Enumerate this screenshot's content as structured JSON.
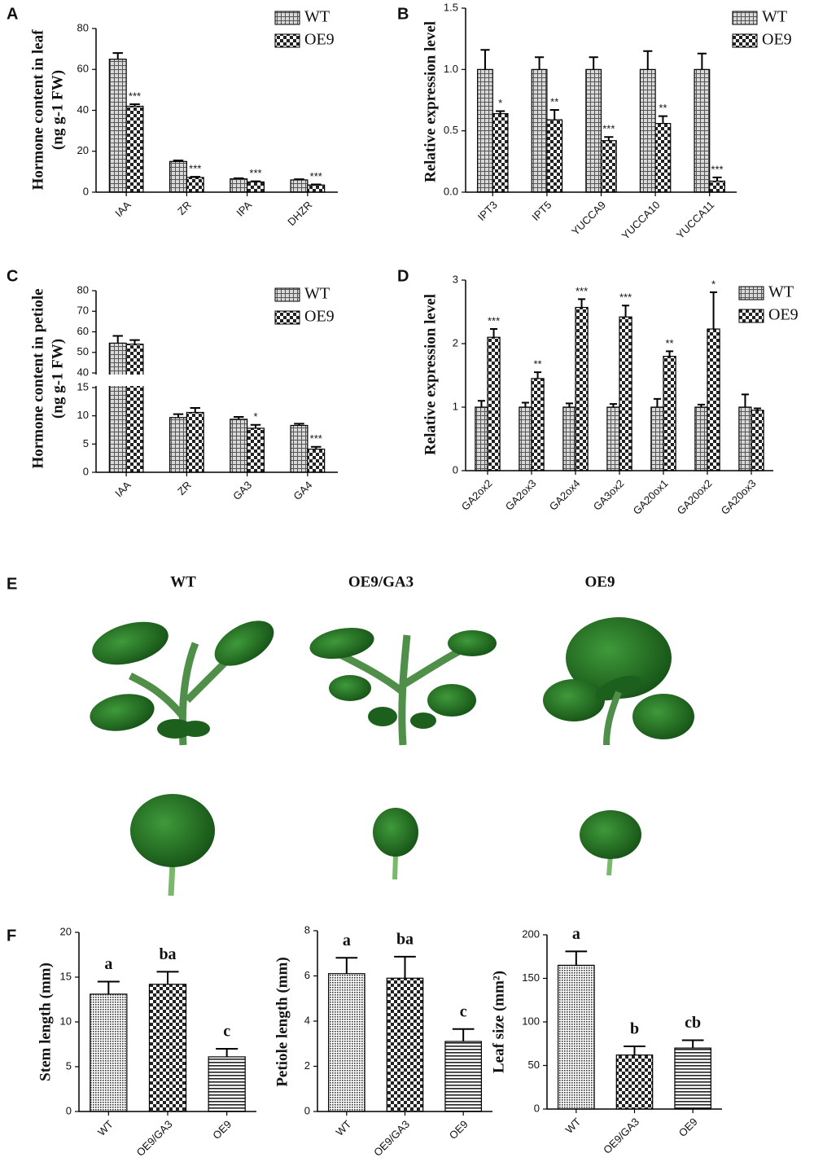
{
  "chart_data": [
    {
      "type": "bar",
      "label": "A",
      "ylabel": [
        "Hormone content in leaf",
        "(ng g-1 FW)"
      ],
      "categories": [
        "IAA",
        "ZR",
        "IPA",
        "DHZR"
      ],
      "series": [
        {
          "name": "WT",
          "pattern": "crosshatch",
          "values": [
            65,
            15,
            6.5,
            6
          ],
          "errors": [
            3,
            0.5,
            0.3,
            0.3
          ]
        },
        {
          "name": "OE9",
          "pattern": "checker",
          "values": [
            42,
            7.2,
            5,
            3.5
          ],
          "errors": [
            1,
            0.3,
            0.3,
            0.3
          ],
          "annotations": [
            "***",
            "***",
            "***",
            "***"
          ]
        }
      ],
      "ylim": [
        0,
        80
      ],
      "yticks": [
        0,
        20,
        40,
        60,
        80
      ],
      "legend": "top-right"
    },
    {
      "type": "bar",
      "label": "B",
      "ylabel": [
        "Relative expression level"
      ],
      "categories": [
        "IPT3",
        "IPT5",
        "YUCCA9",
        "YUCCA10",
        "YUCCA11"
      ],
      "series": [
        {
          "name": "WT",
          "pattern": "crosshatch",
          "values": [
            1,
            1,
            1,
            1,
            1
          ],
          "errors": [
            0.16,
            0.1,
            0.1,
            0.15,
            0.13
          ]
        },
        {
          "name": "OE9",
          "pattern": "checker",
          "values": [
            0.64,
            0.59,
            0.42,
            0.56,
            0.09
          ],
          "errors": [
            0.02,
            0.08,
            0.03,
            0.06,
            0.03
          ],
          "annotations": [
            "*",
            "**",
            "***",
            "**",
            "***"
          ]
        }
      ],
      "ylim": [
        0,
        1.5
      ],
      "yticks": [
        {
          "value": 0,
          "label": "0.0"
        },
        {
          "value": 0.5,
          "label": "0.5"
        },
        {
          "value": 1,
          "label": "1.0"
        },
        {
          "value": 1.5,
          "label": "1.5"
        }
      ],
      "legend": "top-right"
    },
    {
      "type": "bar",
      "label": "C",
      "ylabel": [
        "Hormone content in petiole",
        "(ng g-1 FW)"
      ],
      "categories": [
        "IAA",
        "ZR",
        "GA3",
        "GA4"
      ],
      "series": [
        {
          "name": "WT",
          "pattern": "crosshatch",
          "values": [
            54.5,
            9.7,
            9.4,
            8.3
          ],
          "errors": [
            3.5,
            0.6,
            0.4,
            0.3
          ]
        },
        {
          "name": "OE9",
          "pattern": "checker",
          "values": [
            54,
            10.6,
            7.8,
            4.1
          ],
          "errors": [
            2,
            0.8,
            0.6,
            0.4
          ],
          "annotations": [
            null,
            null,
            "*",
            "***"
          ]
        }
      ],
      "ylim": [
        0,
        80
      ],
      "axis_break": [
        15,
        40
      ],
      "yticks": [
        0,
        5,
        10,
        15,
        40,
        50,
        60,
        70,
        80
      ],
      "legend": "top-right"
    },
    {
      "type": "bar",
      "label": "D",
      "ylabel": [
        "Relative expression level"
      ],
      "categories": [
        "GA2ox2",
        "GA2ox3",
        "GA2ox4",
        "GA3ox2",
        "GA20ox1",
        "GA20ox2",
        "GA20ox3"
      ],
      "series": [
        {
          "name": "WT",
          "pattern": "crosshatch",
          "values": [
            1,
            1,
            1,
            1,
            1,
            1,
            1
          ],
          "errors": [
            0.1,
            0.07,
            0.06,
            0.05,
            0.13,
            0.04,
            0.2
          ]
        },
        {
          "name": "OE9",
          "pattern": "checker",
          "values": [
            2.1,
            1.45,
            2.57,
            2.42,
            1.8,
            2.23,
            0.95
          ],
          "errors": [
            0.13,
            0.1,
            0.13,
            0.18,
            0.08,
            0.58,
            0.03
          ],
          "annotations": [
            "***",
            "**",
            "***",
            "***",
            "**",
            "*",
            null
          ]
        }
      ],
      "ylim": [
        0,
        3
      ],
      "yticks": [
        0,
        1,
        2,
        3
      ],
      "legend": "top-right"
    },
    {
      "type": "bar",
      "label": "F",
      "ylabel": [
        "Stem length (mm)"
      ],
      "categories": [
        "WT",
        "OE9/GA3",
        "OE9"
      ],
      "patterns": [
        "dots",
        "checker",
        "hstripe"
      ],
      "values": [
        13.1,
        14.2,
        6.1
      ],
      "errors": [
        1.4,
        1.4,
        0.9
      ],
      "annotations": [
        "a",
        "ba",
        "c"
      ],
      "ylim": [
        0,
        20
      ],
      "yticks": [
        0,
        5,
        10,
        15,
        20
      ]
    },
    {
      "type": "bar",
      "ylabel": [
        "Petiole length (mm)"
      ],
      "categories": [
        "WT",
        "OE9/GA3",
        "OE9"
      ],
      "patterns": [
        "dots",
        "checker",
        "hstripe"
      ],
      "values": [
        6.1,
        5.9,
        3.1
      ],
      "errors": [
        0.7,
        0.95,
        0.55
      ],
      "annotations": [
        "a",
        "ba",
        "c"
      ],
      "ylim": [
        0,
        8
      ],
      "yticks": [
        0,
        2,
        4,
        6,
        8
      ]
    },
    {
      "type": "bar",
      "ylabel": [
        "Leaf size (mm²)"
      ],
      "categories": [
        "WT",
        "OE9/GA3",
        "OE9"
      ],
      "patterns": [
        "dots",
        "checker",
        "hstripe"
      ],
      "values": [
        165,
        62,
        70
      ],
      "errors": [
        16,
        10,
        9
      ],
      "annotations": [
        "a",
        "b",
        "cb"
      ],
      "ylim": [
        0,
        200
      ],
      "yticks": [
        0,
        50,
        100,
        150,
        200
      ]
    }
  ],
  "photo_panel": {
    "label": "E",
    "columns": [
      "WT",
      "OE9/GA3",
      "OE9"
    ]
  }
}
